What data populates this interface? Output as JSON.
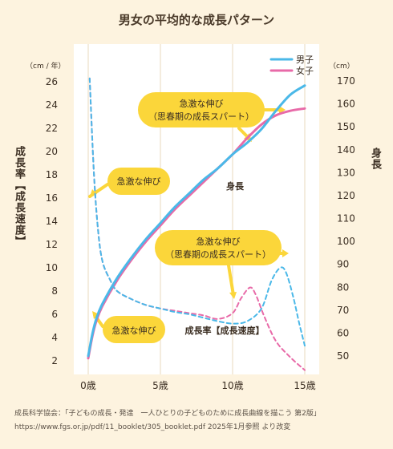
{
  "title": "男女の平均的な成長パターン",
  "source_line1": "成長科学協会：「子どもの成長・発達　一人ひとりの子どものために成長曲線を描こう 第2版」",
  "source_line2": "https://www.fgs.or.jp/pdf/11_booklet/305_booklet.pdf 2025年1月参照 より改変",
  "chart_data": {
    "type": "line",
    "x_ticks": [
      0,
      5,
      10,
      15
    ],
    "x_tick_labels": [
      "0歳",
      "5歳",
      "10歳",
      "15歳"
    ],
    "xlim": [
      0,
      15
    ],
    "left_axis": {
      "unit_label": "（cm / 年）",
      "title": "成長率【成長速度】",
      "ylim": [
        1,
        27
      ],
      "ticks": [
        2,
        4,
        6,
        8,
        10,
        12,
        14,
        16,
        18,
        20,
        22,
        24,
        26
      ]
    },
    "right_axis": {
      "unit_label": "（cm）",
      "title": "身長",
      "ylim": [
        45,
        175
      ],
      "ticks": [
        50,
        60,
        70,
        80,
        90,
        100,
        110,
        120,
        130,
        140,
        150,
        160,
        170
      ]
    },
    "legend": {
      "placement": "top-right",
      "entries": [
        {
          "name": "男子",
          "color": "#4ab8e8"
        },
        {
          "name": "女子",
          "color": "#e86aa8"
        }
      ]
    },
    "series": [
      {
        "name": "男子",
        "kind": "身長",
        "axis": "right",
        "color": "#4ab8e8",
        "points": [
          [
            0,
            50
          ],
          [
            0.3,
            60
          ],
          [
            0.6,
            67
          ],
          [
            1,
            73
          ],
          [
            2,
            84
          ],
          [
            3,
            93
          ],
          [
            4,
            101
          ],
          [
            5,
            108
          ],
          [
            6,
            115
          ],
          [
            7,
            121
          ],
          [
            8,
            127
          ],
          [
            9,
            132
          ],
          [
            10,
            138
          ],
          [
            11,
            143
          ],
          [
            12,
            149
          ],
          [
            13,
            157
          ],
          [
            14,
            164
          ],
          [
            15,
            168
          ]
        ]
      },
      {
        "name": "女子",
        "kind": "身長",
        "axis": "right",
        "color": "#e86aa8",
        "points": [
          [
            0,
            49
          ],
          [
            0.3,
            59
          ],
          [
            0.6,
            66
          ],
          [
            1,
            72
          ],
          [
            2,
            83
          ],
          [
            3,
            92
          ],
          [
            4,
            100
          ],
          [
            5,
            107
          ],
          [
            6,
            114
          ],
          [
            7,
            120
          ],
          [
            8,
            126
          ],
          [
            9,
            132
          ],
          [
            10,
            138
          ],
          [
            11,
            145
          ],
          [
            12,
            151
          ],
          [
            13,
            155
          ],
          [
            14,
            157
          ],
          [
            15,
            158
          ]
        ]
      },
      {
        "name": "男子",
        "kind": "成長率",
        "axis": "left",
        "color": "#4ab8e8",
        "points": [
          [
            0.1,
            26.3
          ],
          [
            0.4,
            18
          ],
          [
            0.7,
            13
          ],
          [
            1,
            10.5
          ],
          [
            1.5,
            9
          ],
          [
            2,
            8
          ],
          [
            3,
            7.3
          ],
          [
            4,
            6.8
          ],
          [
            5,
            6.5
          ],
          [
            6,
            6.2
          ],
          [
            7,
            6
          ],
          [
            8,
            5.7
          ],
          [
            9,
            5.4
          ],
          [
            10,
            5.2
          ],
          [
            11,
            5.4
          ],
          [
            12,
            6.5
          ],
          [
            12.7,
            8.9
          ],
          [
            13.3,
            10
          ],
          [
            13.7,
            9.6
          ],
          [
            14.2,
            7.5
          ],
          [
            14.6,
            5.3
          ],
          [
            15,
            3.3
          ]
        ]
      },
      {
        "name": "女子",
        "kind": "成長率",
        "axis": "left",
        "color": "#e86aa8",
        "points": [
          [
            0.1,
            26.3
          ],
          [
            0.4,
            18
          ],
          [
            0.7,
            13
          ],
          [
            1,
            10.5
          ],
          [
            1.5,
            9
          ],
          [
            2,
            8
          ],
          [
            3,
            7.3
          ],
          [
            4,
            6.8
          ],
          [
            5,
            6.5
          ],
          [
            6,
            6.3
          ],
          [
            7,
            6.1
          ],
          [
            8,
            5.9
          ],
          [
            9,
            5.6
          ],
          [
            10,
            6.1
          ],
          [
            10.6,
            7.4
          ],
          [
            11.2,
            8.3
          ],
          [
            11.6,
            7.7
          ],
          [
            12.2,
            5.8
          ],
          [
            13,
            3.7
          ],
          [
            14,
            2.3
          ],
          [
            15,
            1.2
          ]
        ]
      }
    ],
    "annotations": [
      {
        "text": "急激な伸び"
      },
      {
        "text": "急激な伸び\n（思春期の成長スパート）"
      },
      {
        "text": "身長"
      },
      {
        "text": "急激な伸び\n（思春期の成長スパート）"
      },
      {
        "text": "急激な伸び"
      },
      {
        "text": "成長率【成長速度】"
      }
    ]
  }
}
